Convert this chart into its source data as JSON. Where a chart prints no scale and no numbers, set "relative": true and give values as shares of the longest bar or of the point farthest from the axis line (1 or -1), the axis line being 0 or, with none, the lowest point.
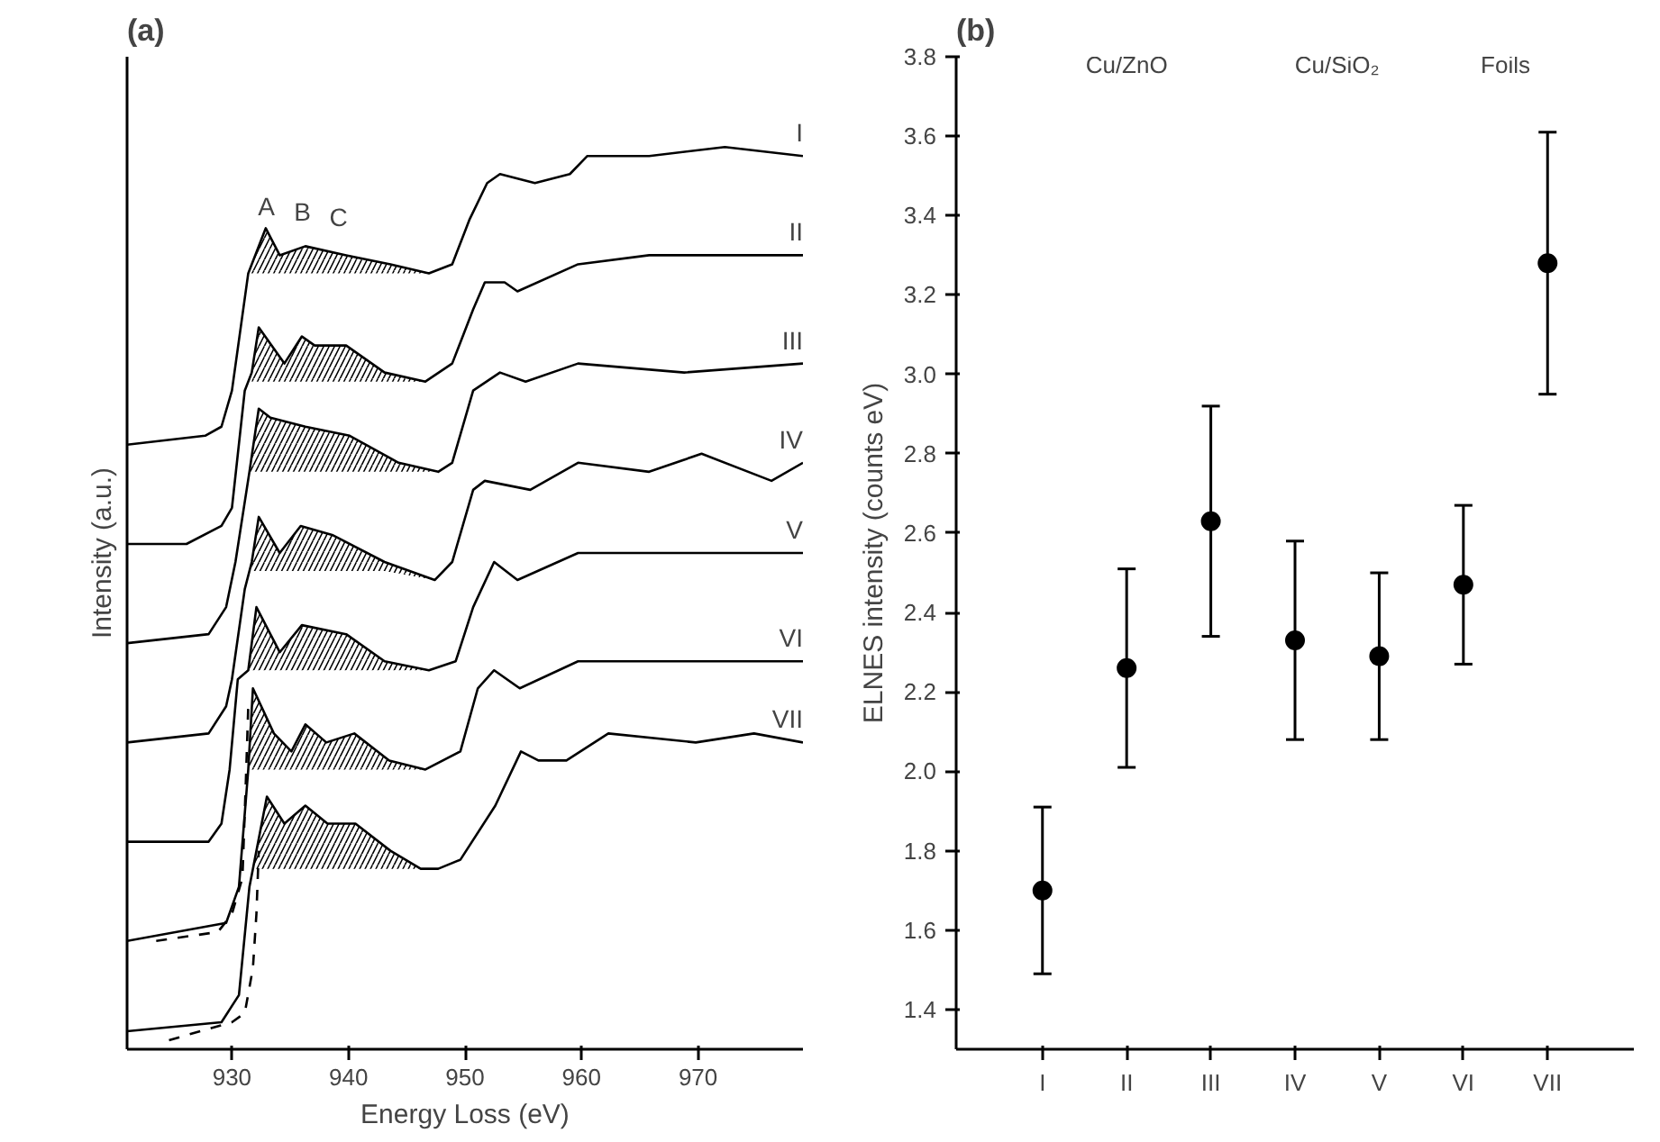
{
  "chart_data": [
    {
      "type": "line",
      "title": "(a)",
      "xlabel": "Energy Loss (eV)",
      "ylabel": "Intensity (a.u.)",
      "relative": true,
      "xlim": [
        921,
        979
      ],
      "xticks": [
        930,
        940,
        950,
        960,
        970
      ],
      "tick_labels": "x",
      "grid": false,
      "line_style": "solid",
      "annotations": [
        "A",
        "B",
        "C"
      ],
      "series": [
        {
          "name": "I",
          "color": "#000000",
          "x": [
            921,
            927.7,
            929.1,
            930,
            931.4,
            932.9,
            934.1,
            936.3,
            939.8,
            943.6,
            946.9,
            948.9,
            950.4,
            951.9,
            953,
            956,
            959,
            960.5,
            965.8,
            972.3,
            979
          ],
          "values": [
            0.67,
            0.68,
            0.69,
            0.73,
            0.86,
            0.91,
            0.88,
            0.89,
            0.88,
            0.87,
            0.86,
            0.87,
            0.92,
            0.96,
            0.97,
            0.96,
            0.97,
            0.99,
            0.99,
            1.0,
            0.99
          ],
          "lower": [
            null,
            null,
            null,
            null,
            0.86,
            0.86,
            0.86,
            0.86,
            0.86,
            0.86,
            0.86,
            null,
            null,
            null,
            null,
            null,
            null,
            null,
            null,
            null,
            null
          ],
          "upper": [
            null,
            null,
            null,
            null,
            0.86,
            0.91,
            0.88,
            0.89,
            0.88,
            0.87,
            0.86,
            null,
            null,
            null,
            null,
            null,
            null,
            null,
            null,
            null,
            null
          ]
        },
        {
          "name": "II",
          "color": "#000000",
          "x": [
            921,
            926.1,
            929.1,
            930,
            931.1,
            931.7,
            932.3,
            934.5,
            936,
            937.1,
            939.8,
            943.1,
            946.6,
            948.9,
            950.7,
            951.7,
            953.4,
            954.5,
            959.7,
            965.8,
            973.3,
            979
          ],
          "values": [
            0.56,
            0.56,
            0.58,
            0.6,
            0.73,
            0.75,
            0.8,
            0.76,
            0.79,
            0.78,
            0.78,
            0.75,
            0.74,
            0.76,
            0.82,
            0.85,
            0.85,
            0.84,
            0.87,
            0.88,
            0.88,
            0.88
          ],
          "lower": [
            null,
            null,
            null,
            null,
            null,
            0.74,
            0.74,
            0.74,
            0.74,
            0.74,
            0.74,
            0.74,
            0.74,
            null,
            null,
            null,
            null,
            null,
            null,
            null,
            null,
            null
          ],
          "upper": [
            null,
            null,
            null,
            null,
            null,
            0.75,
            0.8,
            0.76,
            0.79,
            0.78,
            0.78,
            0.75,
            0.74,
            null,
            null,
            null,
            null,
            null,
            null,
            null,
            null,
            null
          ]
        },
        {
          "name": "III",
          "color": "#000000",
          "x": [
            921,
            928,
            929.5,
            930.3,
            931.5,
            932.3,
            933.3,
            936.3,
            940.1,
            944.3,
            947.7,
            948.9,
            950.7,
            953,
            955.2,
            959.7,
            968.8,
            979
          ],
          "values": [
            0.45,
            0.46,
            0.49,
            0.54,
            0.64,
            0.71,
            0.7,
            0.69,
            0.68,
            0.65,
            0.64,
            0.65,
            0.73,
            0.75,
            0.74,
            0.76,
            0.75,
            0.76
          ],
          "lower": [
            null,
            null,
            null,
            null,
            0.64,
            0.64,
            0.64,
            0.64,
            0.64,
            0.64,
            0.64,
            null,
            null,
            null,
            null,
            null,
            null,
            null
          ],
          "upper": [
            null,
            null,
            null,
            null,
            0.64,
            0.71,
            0.7,
            0.69,
            0.68,
            0.65,
            0.64,
            null,
            null,
            null,
            null,
            null,
            null,
            null
          ]
        },
        {
          "name": "IV",
          "color": "#000000",
          "x": [
            921,
            928,
            929.5,
            930,
            931.1,
            931.7,
            932.3,
            934.1,
            935.9,
            938.6,
            943.1,
            947.4,
            948.9,
            950.7,
            951.7,
            955.6,
            959.7,
            965.8,
            970.3,
            976.3,
            979
          ],
          "values": [
            0.34,
            0.35,
            0.38,
            0.41,
            0.51,
            0.54,
            0.59,
            0.55,
            0.58,
            0.57,
            0.54,
            0.52,
            0.54,
            0.62,
            0.63,
            0.62,
            0.65,
            0.64,
            0.66,
            0.63,
            0.65
          ],
          "lower": [
            null,
            null,
            null,
            null,
            null,
            0.53,
            0.53,
            0.53,
            0.53,
            0.53,
            0.53,
            0.52,
            null,
            null,
            null,
            null,
            null,
            null,
            null,
            null,
            null
          ],
          "upper": [
            null,
            null,
            null,
            null,
            null,
            0.54,
            0.59,
            0.55,
            0.58,
            0.57,
            0.54,
            0.52,
            null,
            null,
            null,
            null,
            null,
            null,
            null,
            null,
            null
          ]
        },
        {
          "name": "V",
          "color": "#000000",
          "x": [
            921,
            928,
            929.1,
            929.8,
            930.5,
            931.4,
            932.1,
            934.1,
            936,
            939.8,
            943.1,
            946.9,
            949.2,
            950.7,
            952.5,
            954.5,
            959.7,
            967.3,
            979
          ],
          "values": [
            0.23,
            0.23,
            0.25,
            0.31,
            0.41,
            0.42,
            0.49,
            0.44,
            0.47,
            0.46,
            0.43,
            0.42,
            0.43,
            0.49,
            0.54,
            0.52,
            0.55,
            0.55,
            0.55
          ],
          "lower": [
            null,
            null,
            null,
            null,
            null,
            0.42,
            0.42,
            0.42,
            0.42,
            0.42,
            0.42,
            0.42,
            null,
            null,
            null,
            null,
            null,
            null,
            null
          ],
          "upper": [
            null,
            null,
            null,
            null,
            null,
            0.42,
            0.49,
            0.44,
            0.47,
            0.46,
            0.43,
            0.42,
            null,
            null,
            null,
            null,
            null,
            null,
            null
          ]
        },
        {
          "name": "VI",
          "color": "#000000",
          "x": [
            921,
            929.5,
            930.6,
            931.4,
            931.8,
            933.6,
            935.1,
            936.3,
            938.1,
            940.5,
            943.5,
            946.6,
            949.6,
            951.1,
            952.5,
            954.7,
            959.7,
            967.3,
            979
          ],
          "values": [
            0.12,
            0.14,
            0.18,
            0.31,
            0.4,
            0.35,
            0.33,
            0.36,
            0.34,
            0.35,
            0.32,
            0.31,
            0.33,
            0.4,
            0.42,
            0.4,
            0.43,
            0.43,
            0.43
          ],
          "lower": [
            null,
            null,
            null,
            0.31,
            0.31,
            0.31,
            0.31,
            0.31,
            0.31,
            0.31,
            0.31,
            0.31,
            null,
            null,
            null,
            null,
            null,
            null,
            null
          ],
          "upper": [
            null,
            null,
            null,
            0.31,
            0.4,
            0.35,
            0.33,
            0.36,
            0.34,
            0.35,
            0.32,
            0.31,
            null,
            null,
            null,
            null,
            null,
            null,
            null
          ]
        },
        {
          "name": "VII",
          "color": "#000000",
          "x": [
            921,
            929.1,
            930.6,
            931.5,
            931.8,
            933,
            934.5,
            936.3,
            938.2,
            940.6,
            943.6,
            946.2,
            947.7,
            949.6,
            952.6,
            954.8,
            956.3,
            958.7,
            962.3,
            969.8,
            974.8,
            979
          ],
          "values": [
            0.02,
            0.03,
            0.06,
            0.18,
            0.2,
            0.28,
            0.25,
            0.27,
            0.25,
            0.25,
            0.22,
            0.2,
            0.2,
            0.21,
            0.27,
            0.33,
            0.32,
            0.32,
            0.35,
            0.34,
            0.35,
            0.34
          ],
          "lower": [
            null,
            null,
            null,
            null,
            0.2,
            0.2,
            0.2,
            0.2,
            0.2,
            0.2,
            0.2,
            0.2,
            0.2,
            null,
            null,
            null,
            null,
            null,
            null,
            null,
            null,
            null
          ],
          "upper": [
            null,
            null,
            null,
            null,
            0.2,
            0.28,
            0.25,
            0.27,
            0.25,
            0.25,
            0.22,
            0.2,
            0.2,
            null,
            null,
            null,
            null,
            null,
            null,
            null,
            null,
            null
          ]
        },
        {
          "color": "#000000",
          "line_style": "dashed",
          "x": [
            923.5,
            928.8,
            930,
            930.9,
            931.2,
            931.4
          ],
          "values": [
            0.12,
            0.13,
            0.15,
            0.19,
            0.3,
            0.38
          ]
        },
        {
          "color": "#000000",
          "line_style": "dashed",
          "x": [
            924.6,
            930,
            931.1,
            931.8,
            932.1,
            932.3
          ],
          "values": [
            0.01,
            0.03,
            0.04,
            0.09,
            0.15,
            0.22
          ]
        }
      ]
    },
    {
      "type": "scatter",
      "title": "(b)",
      "ylabel": "ELNES intensity (counts eV)",
      "categories": [
        "I",
        "II",
        "III",
        "IV",
        "V",
        "VI",
        "VII"
      ],
      "marker": "circle",
      "grid": false,
      "series": [
        {
          "color": "#000000",
          "values": [
            1.7,
            2.26,
            2.63,
            2.33,
            2.29,
            2.47,
            3.28
          ],
          "errors": [
            [
              1.49,
              1.91
            ],
            [
              2.01,
              2.51
            ],
            [
              2.34,
              2.92
            ],
            [
              2.08,
              2.58
            ],
            [
              2.08,
              2.5
            ],
            [
              2.27,
              2.67
            ],
            [
              2.95,
              3.61
            ]
          ]
        }
      ],
      "ylim": [
        1.3,
        3.8
      ],
      "yticks": [
        1.4,
        1.6,
        1.8,
        {
          "value": 2,
          "label": "2.0"
        },
        2.2,
        2.4,
        2.6,
        2.8,
        {
          "value": 3,
          "label": "3.0"
        },
        3.2,
        3.4,
        3.6,
        3.8
      ],
      "annotations": [
        "Cu/ZnO",
        "Cu/SiO₂",
        "Foils"
      ]
    }
  ]
}
